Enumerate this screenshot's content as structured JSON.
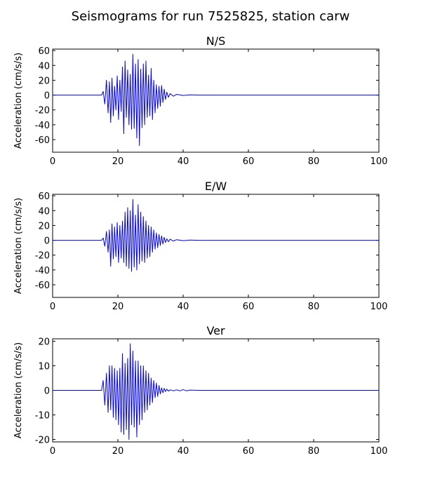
{
  "figure": {
    "title": "Seismograms for run 7525825, station carw"
  },
  "colors": {
    "trace": "#0000ff",
    "axes": "#000000",
    "background": "#ffffff"
  },
  "chart_data": [
    {
      "type": "line",
      "title": "N/S",
      "xlabel": "",
      "ylabel": "Acceleration (cm/s/s)",
      "xlim": [
        0,
        100
      ],
      "ylim": [
        -77,
        62
      ],
      "xticks": [
        0,
        20,
        40,
        60,
        80,
        100
      ],
      "yticks": [
        -60,
        -40,
        -20,
        0,
        20,
        40,
        60
      ],
      "grid": false,
      "legend": "none",
      "series": [
        {
          "x": [
            0,
            10,
            15,
            15.5,
            16,
            16.5,
            17,
            17.4,
            17.8,
            18.2,
            18.6,
            19,
            19.4,
            19.8,
            20.2,
            20.6,
            21,
            21.4,
            21.8,
            22.2,
            22.6,
            23,
            23.4,
            23.8,
            24.2,
            24.6,
            25,
            25.4,
            25.8,
            26.2,
            26.6,
            27,
            27.4,
            27.8,
            28.2,
            28.6,
            29,
            29.4,
            29.8,
            30.2,
            30.6,
            31,
            31.4,
            31.8,
            32.2,
            32.6,
            33,
            33.4,
            33.8,
            34.2,
            34.6,
            35,
            35.5,
            36,
            37,
            38,
            40,
            42,
            45,
            50,
            100
          ],
          "y": [
            0,
            0,
            0,
            5,
            -12,
            20,
            -24,
            18,
            -37,
            23,
            -28,
            12,
            -20,
            26,
            -33,
            20,
            -22,
            38,
            -52,
            46,
            -30,
            34,
            -40,
            28,
            -46,
            55,
            -45,
            42,
            -58,
            48,
            -68,
            35,
            -44,
            42,
            -40,
            46,
            -30,
            27,
            -28,
            36,
            -33,
            20,
            -24,
            14,
            -18,
            12,
            -15,
            13,
            -10,
            8,
            -6,
            4,
            -3,
            2,
            -1.5,
            1,
            -0.5,
            0.3,
            0,
            0,
            0
          ]
        }
      ]
    },
    {
      "type": "line",
      "title": "E/W",
      "xlabel": "",
      "ylabel": "Acceleration (cm/s/s)",
      "xlim": [
        0,
        100
      ],
      "ylim": [
        -77,
        62
      ],
      "xticks": [
        0,
        20,
        40,
        60,
        80,
        100
      ],
      "yticks": [
        -60,
        -40,
        -20,
        0,
        20,
        40,
        60
      ],
      "grid": false,
      "legend": "none",
      "series": [
        {
          "x": [
            0,
            10,
            15,
            15.5,
            16,
            16.5,
            17,
            17.4,
            17.8,
            18.2,
            18.6,
            19,
            19.4,
            19.8,
            20.2,
            20.6,
            21,
            21.4,
            21.8,
            22.2,
            22.6,
            23,
            23.4,
            23.8,
            24.2,
            24.6,
            25,
            25.4,
            25.8,
            26.2,
            26.6,
            27,
            27.4,
            27.8,
            28.2,
            28.6,
            29,
            29.4,
            29.8,
            30.2,
            30.6,
            31,
            31.4,
            31.8,
            32.2,
            32.6,
            33,
            33.4,
            33.8,
            34.2,
            34.6,
            35,
            35.5,
            36,
            37,
            38,
            40,
            42,
            45,
            50,
            100
          ],
          "y": [
            0,
            0,
            0,
            3,
            -8,
            12,
            -16,
            14,
            -35,
            22,
            -25,
            18,
            -22,
            24,
            -30,
            20,
            -24,
            26,
            -30,
            38,
            -35,
            44,
            -38,
            40,
            -42,
            55,
            -36,
            34,
            -40,
            48,
            -32,
            38,
            -28,
            32,
            -30,
            26,
            -24,
            20,
            -22,
            18,
            -16,
            14,
            -12,
            10,
            -10,
            8,
            -7,
            6,
            -5,
            4,
            -3,
            2,
            -2,
            1.5,
            -1,
            0.8,
            -0.5,
            0.3,
            0,
            0,
            0
          ]
        }
      ]
    },
    {
      "type": "line",
      "title": "Ver",
      "xlabel": "",
      "ylabel": "Acceleration (cm/s/s)",
      "xlim": [
        0,
        100
      ],
      "ylim": [
        -21,
        21
      ],
      "xticks": [
        0,
        20,
        40,
        60,
        80,
        100
      ],
      "yticks": [
        -20,
        -10,
        0,
        10,
        20
      ],
      "grid": false,
      "legend": "none",
      "series": [
        {
          "x": [
            0,
            10,
            15,
            15.5,
            16,
            16.5,
            17,
            17.4,
            17.8,
            18.2,
            18.6,
            19,
            19.4,
            19.8,
            20.2,
            20.6,
            21,
            21.4,
            21.8,
            22.2,
            22.6,
            23,
            23.4,
            23.8,
            24.2,
            24.6,
            25,
            25.4,
            25.8,
            26.2,
            26.6,
            27,
            27.4,
            27.8,
            28.2,
            28.6,
            29,
            29.4,
            29.8,
            30.2,
            30.6,
            31,
            31.4,
            31.8,
            32.2,
            32.6,
            33,
            33.4,
            33.8,
            34.2,
            34.6,
            35,
            35.5,
            36,
            37,
            38,
            39,
            40,
            41,
            42,
            45,
            50,
            100
          ],
          "y": [
            0,
            0,
            0,
            4,
            -6,
            7,
            -9,
            10,
            -8,
            10,
            -11,
            9,
            -12,
            8,
            -14,
            9,
            -17,
            15,
            -18,
            11,
            -16,
            13,
            -20,
            19,
            -14,
            16,
            -15,
            12,
            -19,
            12,
            -14,
            10,
            -12,
            10,
            -9,
            8,
            -8,
            7,
            -6,
            5,
            -5,
            4,
            -3,
            3,
            -2.5,
            2,
            -1.5,
            1,
            -1,
            0.8,
            -0.5,
            0.5,
            -0.3,
            0.2,
            -0.2,
            0.2,
            -0.2,
            0.3,
            -0.2,
            0.1,
            0,
            0,
            0
          ]
        }
      ]
    }
  ]
}
